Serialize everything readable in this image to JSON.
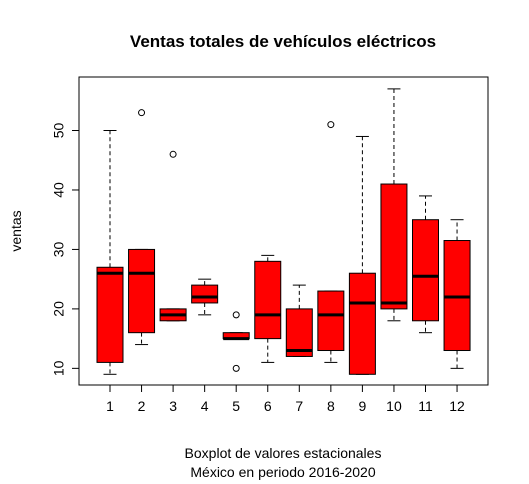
{
  "chart_data": {
    "type": "boxplot",
    "title": "Ventas totales de vehículos eléctricos",
    "xlabel_lines": [
      "Boxplot de valores estacionales",
      "México en periodo 2016-2020"
    ],
    "ylabel": "ventas",
    "ylim": [
      7.2,
      59.0
    ],
    "yticks": [
      10,
      20,
      30,
      40,
      50
    ],
    "categories": [
      "1",
      "2",
      "3",
      "4",
      "5",
      "6",
      "7",
      "8",
      "9",
      "10",
      "11",
      "12"
    ],
    "boxes": [
      {
        "whisker_low": 9,
        "q1": 11,
        "median": 26,
        "q3": 27,
        "whisker_high": 50,
        "outliers": []
      },
      {
        "whisker_low": 14,
        "q1": 16,
        "median": 26,
        "q3": 30,
        "whisker_high": 30,
        "outliers": [
          53
        ]
      },
      {
        "whisker_low": 18,
        "q1": 18,
        "median": 19,
        "q3": 20,
        "whisker_high": 20,
        "outliers": [
          46
        ]
      },
      {
        "whisker_low": 19,
        "q1": 21,
        "median": 22,
        "q3": 24,
        "whisker_high": 25,
        "outliers": []
      },
      {
        "whisker_low": 15,
        "q1": 15,
        "median": 15,
        "q3": 16,
        "whisker_high": 16,
        "outliers": [
          19,
          10
        ]
      },
      {
        "whisker_low": 11,
        "q1": 15,
        "median": 19,
        "q3": 28,
        "whisker_high": 29,
        "outliers": []
      },
      {
        "whisker_low": 12,
        "q1": 12,
        "median": 13,
        "q3": 20,
        "whisker_high": 24,
        "outliers": []
      },
      {
        "whisker_low": 11,
        "q1": 13,
        "median": 19,
        "q3": 23,
        "whisker_high": 23,
        "outliers": [
          51
        ]
      },
      {
        "whisker_low": 9,
        "q1": 9,
        "median": 21,
        "q3": 26,
        "whisker_high": 49,
        "outliers": []
      },
      {
        "whisker_low": 18,
        "q1": 20,
        "median": 21,
        "q3": 41,
        "whisker_high": 57,
        "outliers": []
      },
      {
        "whisker_low": 16,
        "q1": 18,
        "median": 25.5,
        "q3": 35,
        "whisker_high": 39,
        "outliers": []
      },
      {
        "whisker_low": 10,
        "q1": 13,
        "median": 22,
        "q3": 31.5,
        "whisker_high": 35,
        "outliers": []
      }
    ],
    "box_fill": "#ff0000",
    "box_stroke": "#000000",
    "grid": false,
    "legend": "none"
  }
}
